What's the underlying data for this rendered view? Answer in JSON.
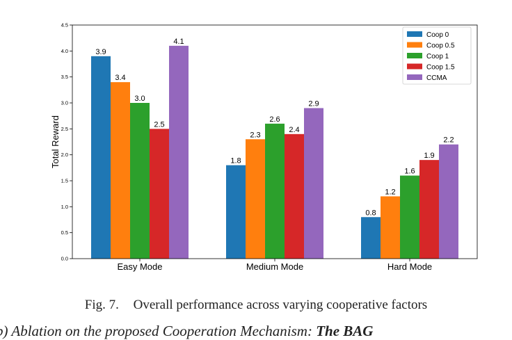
{
  "chart_data": {
    "type": "bar",
    "categories": [
      "Easy Mode",
      "Medium Mode",
      "Hard Mode"
    ],
    "series": [
      {
        "name": "Coop 0",
        "color": "#1f77b4",
        "values": [
          3.9,
          1.8,
          0.8
        ]
      },
      {
        "name": "Coop 0.5",
        "color": "#ff7f0e",
        "values": [
          3.4,
          2.3,
          1.2
        ]
      },
      {
        "name": "Coop 1",
        "color": "#2ca02c",
        "values": [
          3.0,
          2.6,
          1.6
        ]
      },
      {
        "name": "Coop 1.5",
        "color": "#d62728",
        "values": [
          2.5,
          2.4,
          1.9
        ]
      },
      {
        "name": "CCMA",
        "color": "#9467bd",
        "values": [
          4.1,
          2.9,
          2.2
        ]
      }
    ],
    "data_labels": [
      [
        "3.9",
        "3.4",
        "3.0",
        "2.5",
        "4.1"
      ],
      [
        "1.8",
        "2.3",
        "2.6",
        "2.4",
        "2.9"
      ],
      [
        "0.8",
        "1.2",
        "1.6",
        "1.9",
        "2.2"
      ]
    ],
    "yticks": [
      "0.0",
      "0.5",
      "1.0",
      "1.5",
      "2.0",
      "2.5",
      "3.0",
      "3.5",
      "4.0",
      "4.5"
    ],
    "ylim": [
      0,
      4.5
    ],
    "xlabel": "",
    "ylabel": "Total Reward",
    "title": "",
    "legend": "top-right",
    "grid": false
  },
  "caption": {
    "label": "Fig. 7.",
    "text": "Overall performance across varying cooperative factors"
  },
  "cut_text": {
    "part1": "b) Ablation on the proposed Cooperation Mechanism: ",
    "part2": "The BAG"
  }
}
